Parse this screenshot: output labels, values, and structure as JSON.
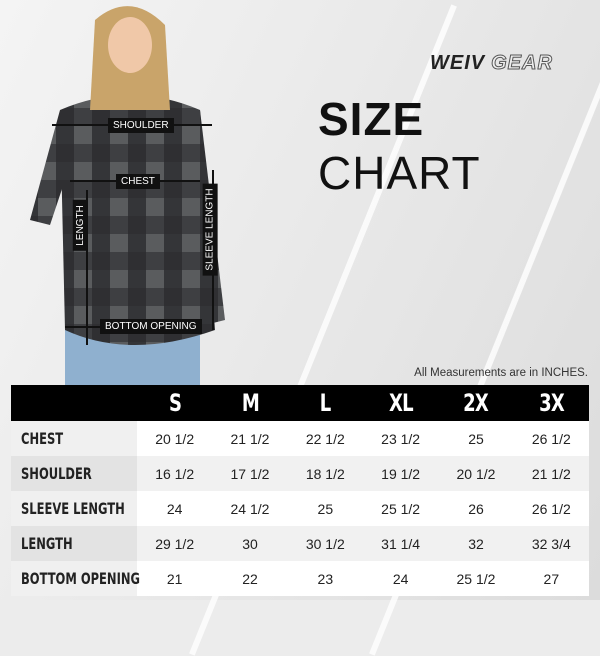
{
  "brand": {
    "part1": "WEIV",
    "part2": "GEAR"
  },
  "title": {
    "bold": "SIZE",
    "light": "CHART"
  },
  "note": "All Measurements are in INCHES.",
  "diagram_labels": {
    "shoulder": "SHOULDER",
    "chest": "CHEST",
    "length": "LENGTH",
    "sleeve": "SLEEVE LENGTH",
    "bottom": "BOTTOM OPENING"
  },
  "chart_data": {
    "type": "table",
    "columns": [
      "S",
      "M",
      "L",
      "XL",
      "2X",
      "3X"
    ],
    "rows": [
      {
        "label": "CHEST",
        "values": [
          "20 1/2",
          "21 1/2",
          "22 1/2",
          "23 1/2",
          "25",
          "26 1/2"
        ]
      },
      {
        "label": "SHOULDER",
        "values": [
          "16 1/2",
          "17 1/2",
          "18 1/2",
          "19 1/2",
          "20 1/2",
          "21 1/2"
        ]
      },
      {
        "label": "SLEEVE LENGTH",
        "values": [
          "24",
          "24 1/2",
          "25",
          "25 1/2",
          "26",
          "26 1/2"
        ]
      },
      {
        "label": "LENGTH",
        "values": [
          "29 1/2",
          "30",
          "30 1/2",
          "31 1/4",
          "32",
          "32 3/4"
        ]
      },
      {
        "label": "BOTTOM OPENING",
        "values": [
          "21",
          "22",
          "23",
          "24",
          "25 1/2",
          "27"
        ]
      }
    ]
  }
}
